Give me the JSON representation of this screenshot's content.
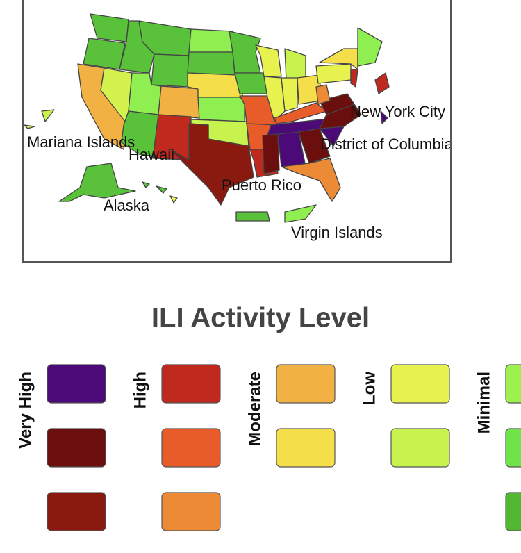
{
  "map": {
    "labels": [
      "Mariana Islands",
      "Hawaii",
      "Alaska",
      "Puerto Rico",
      "Virgin Islands",
      "New York City",
      "District of Columbia"
    ]
  },
  "legend": {
    "title": "ILI Activity Level",
    "levels": [
      {
        "label": "Very High",
        "colors": [
          "#4b0a78",
          "#6a0f0d",
          "#8a1a10"
        ]
      },
      {
        "label": "High",
        "colors": [
          "#c0291e",
          "#e85c2a",
          "#ec8a35"
        ]
      },
      {
        "label": "Moderate",
        "colors": [
          "#f2b143",
          "#f4df4a"
        ]
      },
      {
        "label": "Low",
        "colors": [
          "#e8f24e",
          "#c8f24e"
        ]
      },
      {
        "label": "Minimal",
        "colors": [
          "#9ef04e",
          "#6fe34a",
          "#52b834"
        ]
      }
    ]
  }
}
